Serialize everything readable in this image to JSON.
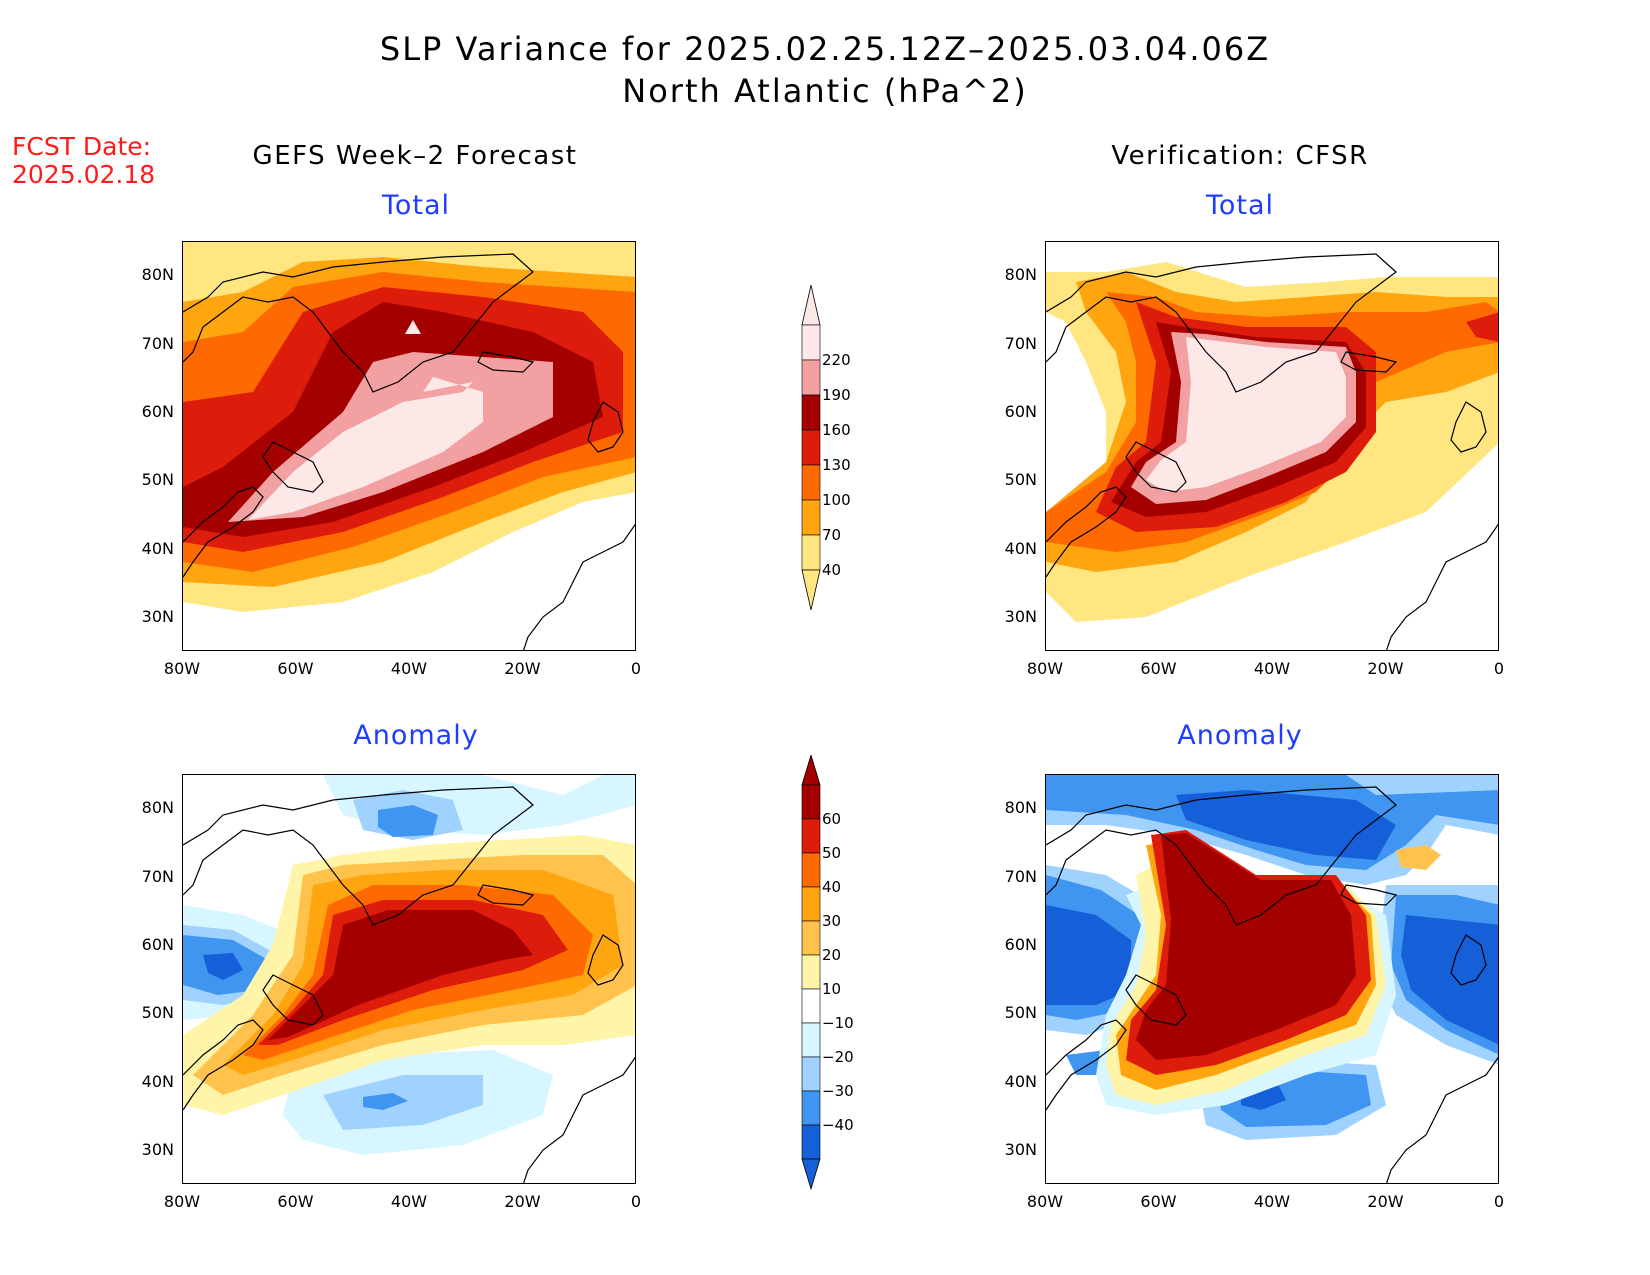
{
  "title_line1": "SLP Variance for 2025.02.25.12Z–2025.03.04.06Z",
  "title_line2": "North Atlantic (hPa^2)",
  "fcst_label": "FCST Date:",
  "fcst_date": "2025.02.18",
  "columns": {
    "left": "GEFS Week–2 Forecast",
    "right": "Verification: CFSR"
  },
  "panels": {
    "top_left": "Total",
    "top_right": "Total",
    "bottom_left": "Anomaly",
    "bottom_right": "Anomaly"
  },
  "axes": {
    "lat_ticks": [
      "80N",
      "70N",
      "60N",
      "50N",
      "40N",
      "30N"
    ],
    "lon_ticks": [
      "80W",
      "60W",
      "40W",
      "20W",
      "0"
    ],
    "lat_range": [
      25,
      85
    ],
    "lon_range": [
      -80,
      0
    ]
  },
  "colorbar_total": {
    "levels": [
      "220",
      "190",
      "160",
      "130",
      "100",
      "70",
      "40"
    ],
    "colors": [
      "#fde8e8",
      "#f2a0a2",
      "#a50000",
      "#dd1c0c",
      "#ff6a00",
      "#ffa510",
      "#ffe680"
    ]
  },
  "colorbar_anomaly": {
    "levels": [
      "60",
      "50",
      "40",
      "30",
      "20",
      "10",
      "−10",
      "−20",
      "−30",
      "−40"
    ],
    "colors": [
      "#a50000",
      "#dd1c0c",
      "#ff6a00",
      "#ffa510",
      "#ffc34d",
      "#fff5a8",
      "#ffffff",
      "#d8f6ff",
      "#9fd2ff",
      "#3f95f0",
      "#1560d8"
    ]
  }
}
